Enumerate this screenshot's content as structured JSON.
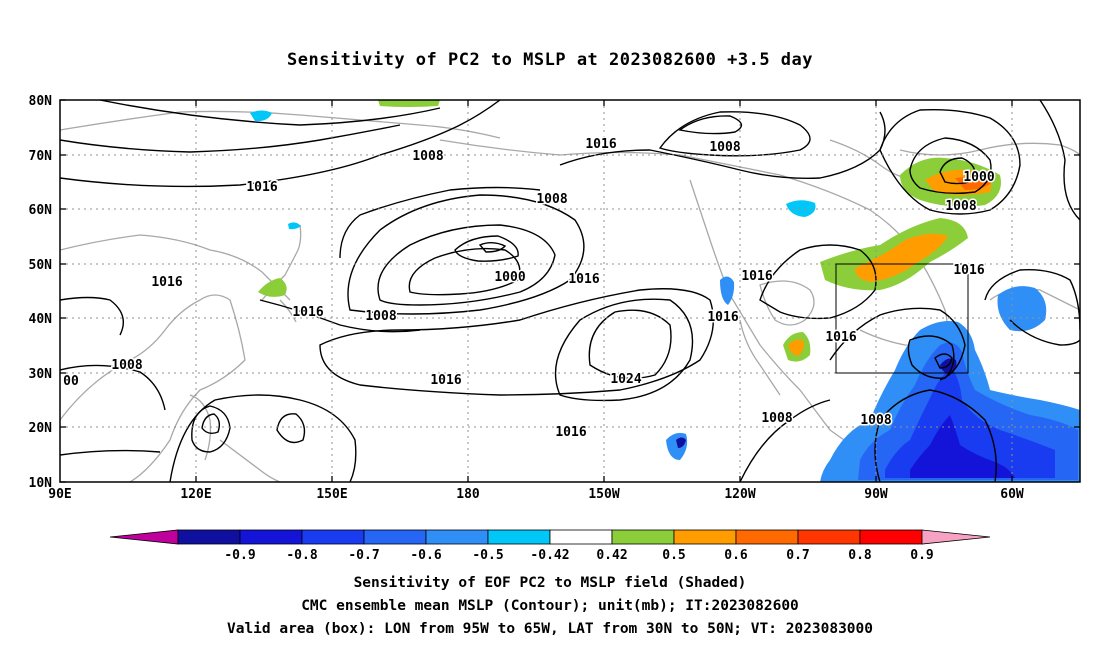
{
  "title": "Sensitivity of PC2 to MSLP at 2023082600 +3.5 day",
  "map": {
    "lat_labels": [
      "80N",
      "70N",
      "60N",
      "50N",
      "40N",
      "30N",
      "20N",
      "10N"
    ],
    "lon_labels": [
      "90E",
      "120E",
      "150E",
      "180",
      "150W",
      "120W",
      "90W",
      "60W"
    ],
    "contour_labels": [
      {
        "text": "1008"
      },
      {
        "text": "1016"
      },
      {
        "text": "1008"
      },
      {
        "text": "1000"
      },
      {
        "text": "1008"
      },
      {
        "text": "1016"
      },
      {
        "text": "1008"
      },
      {
        "text": "1016"
      },
      {
        "text": "1000"
      },
      {
        "text": "1016"
      },
      {
        "text": "1016"
      },
      {
        "text": "1016"
      },
      {
        "text": "1016"
      },
      {
        "text": "1008"
      },
      {
        "text": "1016"
      },
      {
        "text": "1016"
      },
      {
        "text": "1024"
      },
      {
        "text": "1008"
      },
      {
        "text": "00"
      },
      {
        "text": "1016"
      },
      {
        "text": "1008"
      },
      {
        "text": "1008"
      },
      {
        "text": "1016"
      }
    ]
  },
  "colorbar": {
    "labels": [
      "-0.9",
      "-0.8",
      "-0.7",
      "-0.6",
      "-0.5",
      "-0.42",
      "0.42",
      "0.5",
      "0.6",
      "0.7",
      "0.8",
      "0.9"
    ],
    "colors": [
      "#c0009c",
      "#1010a0",
      "#1414d8",
      "#1a3cf0",
      "#2666f5",
      "#2f8ff7",
      "#00c7f7",
      "#ffffff",
      "#8bce3a",
      "#ff9d00",
      "#ff6a00",
      "#ff3600",
      "#ff0000",
      "#f7a1c3"
    ]
  },
  "captions": {
    "line1": "Sensitivity of EOF PC2 to MSLP field (Shaded)",
    "line2": "CMC ensemble mean MSLP (Contour); unit(mb); IT:2023082600",
    "line3": "Valid area (box): LON from 95W to 65W, LAT from 30N to 50N; VT: 2023083000"
  }
}
